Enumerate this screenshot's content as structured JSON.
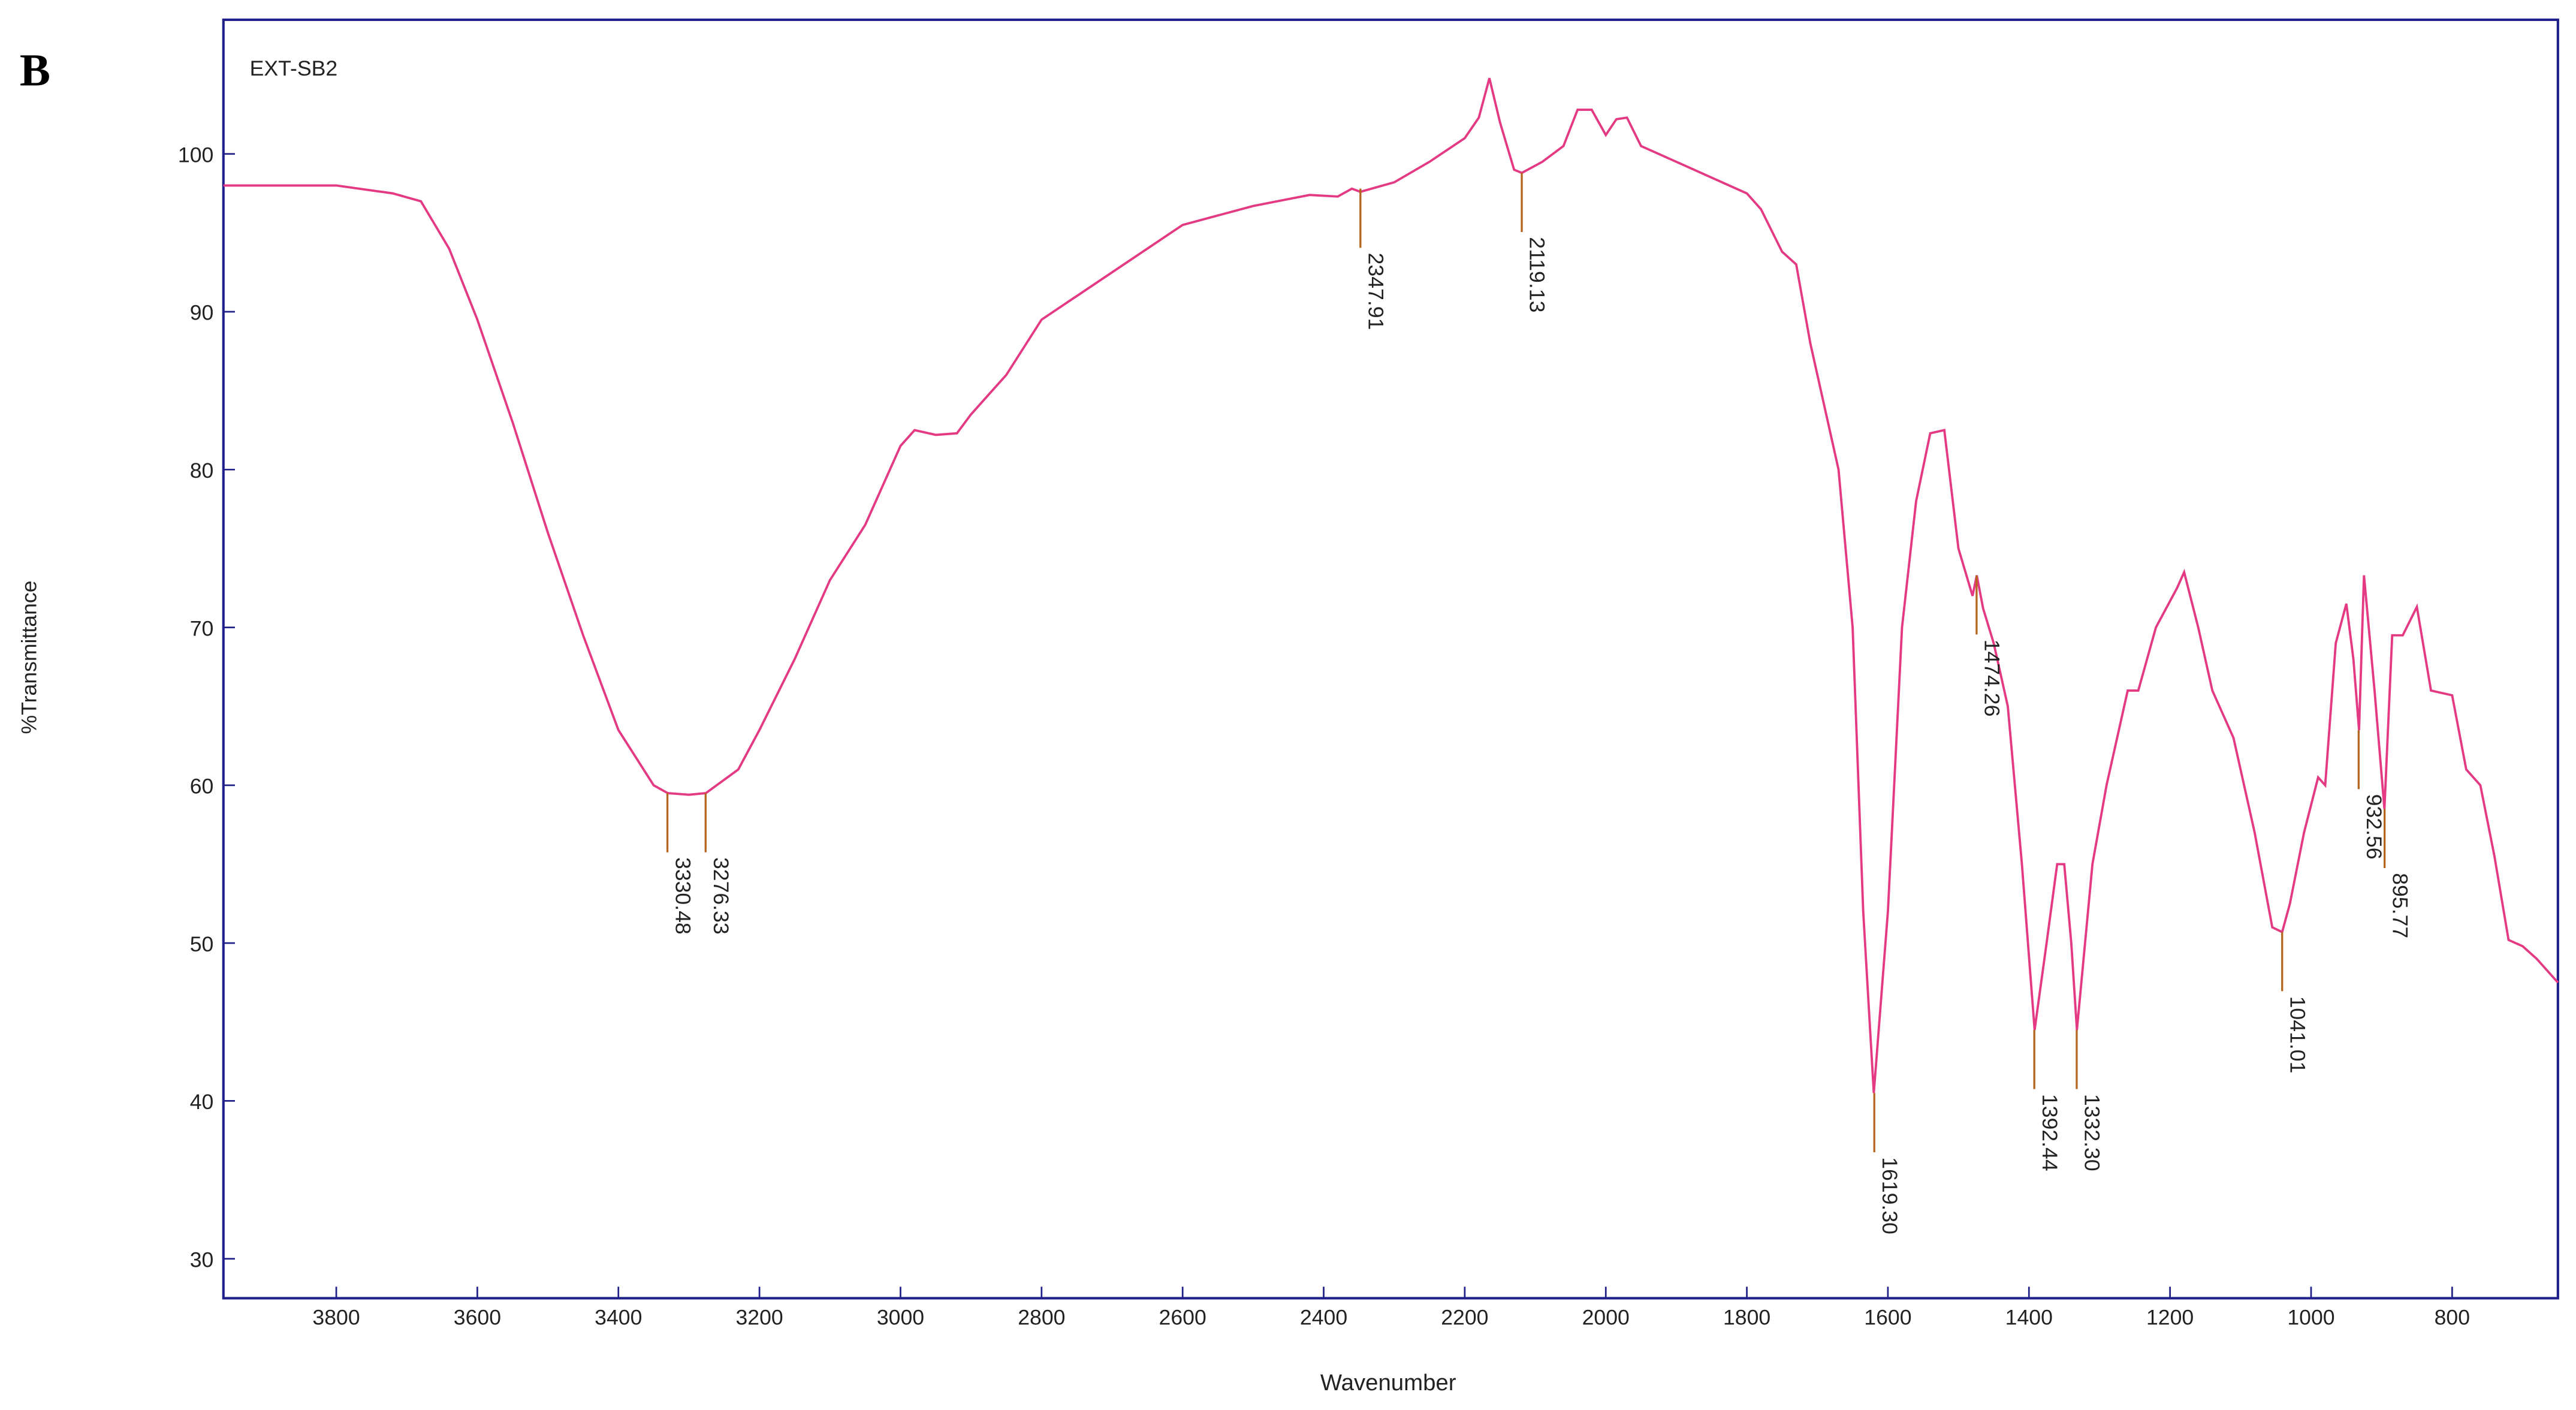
{
  "chart_data": {
    "type": "line",
    "panel_label": "B",
    "xlabel": "Wavenumber",
    "ylabel": "%Transmittance",
    "xlim": [
      3960,
      650
    ],
    "ylim": [
      27.5,
      108.5
    ],
    "xticks": [
      3800,
      3600,
      3400,
      3200,
      3000,
      2800,
      2600,
      2400,
      2200,
      2000,
      1800,
      1600,
      1400,
      1200,
      1000,
      800
    ],
    "yticks": [
      30,
      40,
      50,
      60,
      70,
      80,
      90,
      100
    ],
    "x": [
      3960,
      3800,
      3720,
      3680,
      3640,
      3600,
      3550,
      3500,
      3450,
      3400,
      3350,
      3330,
      3300,
      3276,
      3230,
      3200,
      3150,
      3100,
      3050,
      3000,
      2980,
      2950,
      2920,
      2900,
      2850,
      2800,
      2750,
      2700,
      2650,
      2600,
      2500,
      2420,
      2380,
      2360,
      2348,
      2300,
      2250,
      2200,
      2180,
      2165,
      2150,
      2130,
      2119,
      2090,
      2060,
      2040,
      2020,
      2000,
      1985,
      1970,
      1950,
      1900,
      1850,
      1800,
      1780,
      1750,
      1730,
      1710,
      1690,
      1670,
      1650,
      1635,
      1620,
      1600,
      1580,
      1560,
      1540,
      1520,
      1500,
      1490,
      1480,
      1474,
      1465,
      1450,
      1430,
      1410,
      1392,
      1375,
      1360,
      1350,
      1340,
      1332,
      1310,
      1290,
      1260,
      1245,
      1220,
      1190,
      1180,
      1160,
      1140,
      1110,
      1080,
      1055,
      1041,
      1030,
      1010,
      990,
      980,
      965,
      950,
      940,
      932,
      925,
      910,
      896,
      885,
      870,
      850,
      830,
      800,
      780,
      760,
      740,
      720,
      700,
      680,
      650
    ],
    "series": [
      {
        "name": "EXT-SB2",
        "color": "#e33a83",
        "values": [
          98,
          98,
          97.5,
          97,
          94,
          89.5,
          83,
          76,
          69.5,
          63.5,
          60,
          59.5,
          59.4,
          59.5,
          61,
          63.5,
          68,
          73,
          76.5,
          81.5,
          82.5,
          82.2,
          82.3,
          83.5,
          86,
          89.5,
          91,
          92.5,
          94,
          95.5,
          96.7,
          97.4,
          97.3,
          97.8,
          97.6,
          98.2,
          99.5,
          101,
          102.3,
          104.8,
          102,
          99,
          98.8,
          99.5,
          100.5,
          102.8,
          102.8,
          101.2,
          102.2,
          102.3,
          100.5,
          99.5,
          98.5,
          97.5,
          96.5,
          93.8,
          93,
          88,
          84,
          80,
          70,
          52,
          40.5,
          52,
          70,
          78,
          82.3,
          82.5,
          75,
          73.5,
          72,
          73.3,
          71.2,
          69,
          65,
          55,
          44.5,
          50,
          55,
          55,
          50,
          44.5,
          55,
          60,
          66,
          66,
          70,
          72.5,
          73.5,
          70,
          66,
          63,
          57,
          51,
          50.7,
          52.5,
          57,
          60.5,
          60,
          69,
          71.5,
          68,
          63.5,
          73.3,
          66,
          58.5,
          69.5,
          69.5,
          71.3,
          66,
          65.7,
          61,
          60,
          55.5,
          50.2,
          49.8,
          49,
          47.5
        ]
      }
    ],
    "annotations": [
      {
        "x": 3330.48,
        "y": 59.5,
        "label": "3330.48"
      },
      {
        "x": 3276.33,
        "y": 59.5,
        "label": "3276.33"
      },
      {
        "x": 2347.91,
        "y": 97.8,
        "label": "2347.91"
      },
      {
        "x": 2119.13,
        "y": 98.8,
        "label": "2119.13"
      },
      {
        "x": 1619.3,
        "y": 40.5,
        "label": "1619.30"
      },
      {
        "x": 1474.26,
        "y": 73.3,
        "label": "1474.26"
      },
      {
        "x": 1392.44,
        "y": 44.5,
        "label": "1392.44"
      },
      {
        "x": 1332.3,
        "y": 44.5,
        "label": "1332.30"
      },
      {
        "x": 1041.01,
        "y": 50.7,
        "label": "1041.01"
      },
      {
        "x": 932.56,
        "y": 63.5,
        "label": "932.56"
      },
      {
        "x": 895.77,
        "y": 58.5,
        "label": "895.77"
      }
    ]
  }
}
